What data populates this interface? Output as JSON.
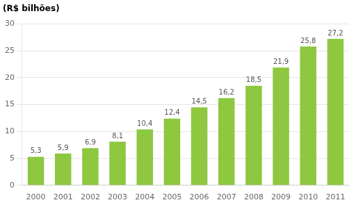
{
  "chart_data": {
    "type": "bar",
    "ylabel": "(R$ bilhões)",
    "categories": [
      "2000",
      "2001",
      "2002",
      "2003",
      "2004",
      "2005",
      "2006",
      "2007",
      "2008",
      "2009",
      "2010",
      "2011"
    ],
    "values": [
      5.3,
      5.9,
      6.9,
      8.1,
      10.4,
      12.4,
      14.5,
      16.2,
      18.5,
      21.9,
      25.8,
      27.2
    ],
    "value_labels": [
      "5,3",
      "5,9",
      "6,9",
      "8,1",
      "10,4",
      "12,4",
      "14,5",
      "16,2",
      "18,5",
      "21,9",
      "25,8",
      "27,2"
    ],
    "color": "#8dc840",
    "ylim": [
      0,
      30
    ],
    "yticks": [
      0,
      5,
      10,
      15,
      20,
      25,
      30
    ],
    "grid": true,
    "data_labels": true
  }
}
